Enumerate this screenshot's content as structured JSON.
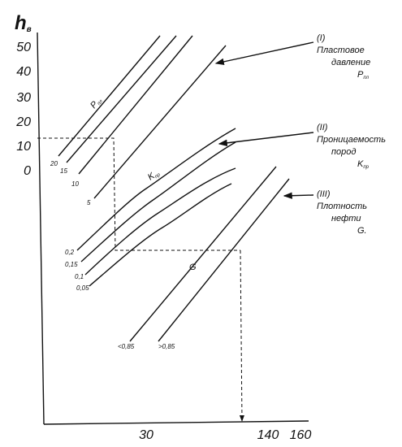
{
  "axis": {
    "y_symbol": "h",
    "y_subscript": "в",
    "y_labels": [
      "50",
      "40",
      "30",
      "20",
      "10",
      "0"
    ],
    "x_labels": [
      "30",
      "140",
      "160"
    ]
  },
  "groups": [
    {
      "number": "(I)",
      "title_lines": [
        "Пластовое",
        "давление"
      ],
      "symbol": "P",
      "symbol_sub": "пл",
      "curve_symbol": "P",
      "curve_sub": "пл",
      "curve_labels": [
        "20",
        "15",
        "10",
        "5"
      ]
    },
    {
      "number": "(II)",
      "title_lines": [
        "Проницаемость",
        "пород"
      ],
      "symbol": "K",
      "symbol_sub": "пр",
      "curve_symbol": "K",
      "curve_sub": "пр",
      "curve_labels": [
        "0,2",
        "0,15",
        "0,1",
        "0,05"
      ]
    },
    {
      "number": "(III)",
      "title_lines": [
        "Плотность",
        "нефти"
      ],
      "symbol": "G.",
      "symbol_sub": "",
      "curve_symbol": "G",
      "curve_sub": "",
      "curve_labels": [
        "<0,85",
        ">0,85"
      ]
    }
  ]
}
